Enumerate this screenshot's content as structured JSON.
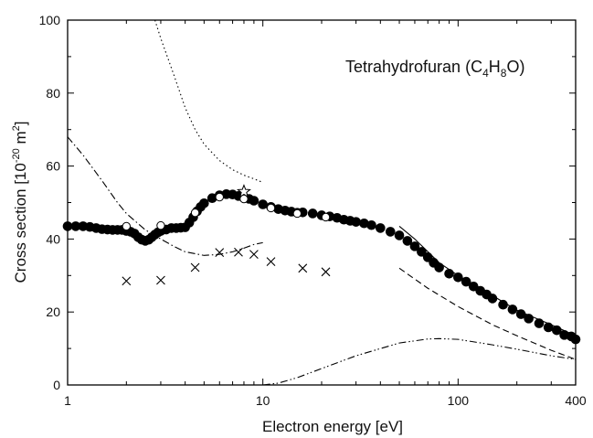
{
  "chart_data": {
    "type": "scatter",
    "title": "",
    "xlabel": "Electron energy [eV]",
    "ylabel": {
      "prefix": "Cross section [10",
      "exp": "-20",
      "unit": " m",
      "unit_exp": "2",
      "suffix": "]"
    },
    "x_scale": "log",
    "xlim": [
      1,
      400
    ],
    "ylim": [
      0,
      100
    ],
    "x_ticks": [
      {
        "value": 1,
        "label": "1"
      },
      {
        "value": 10,
        "label": "10"
      },
      {
        "value": 100,
        "label": "100"
      },
      {
        "value": 400,
        "label": "400"
      }
    ],
    "y_ticks": [
      {
        "value": 0,
        "label": "0"
      },
      {
        "value": 20,
        "label": "20"
      },
      {
        "value": 40,
        "label": "40"
      },
      {
        "value": 60,
        "label": "60"
      },
      {
        "value": 80,
        "label": "80"
      },
      {
        "value": 100,
        "label": "100"
      }
    ],
    "annotation": {
      "text": "Tetrahydrofuran (C",
      "sub1": "4",
      "mid": "H",
      "sub2": "8",
      "end": "O)"
    },
    "series": [
      {
        "marker": "filled-circle",
        "points": [
          [
            1.0,
            43.5
          ],
          [
            1.1,
            43.5
          ],
          [
            1.2,
            43.5
          ],
          [
            1.3,
            43.3
          ],
          [
            1.4,
            43.0
          ],
          [
            1.5,
            42.7
          ],
          [
            1.6,
            42.6
          ],
          [
            1.7,
            42.5
          ],
          [
            1.8,
            42.5
          ],
          [
            1.9,
            42.5
          ],
          [
            2.0,
            42.2
          ],
          [
            2.1,
            42.0
          ],
          [
            2.2,
            41.5
          ],
          [
            2.3,
            40.5
          ],
          [
            2.4,
            39.8
          ],
          [
            2.5,
            39.5
          ],
          [
            2.6,
            39.8
          ],
          [
            2.7,
            40.5
          ],
          [
            2.8,
            41.2
          ],
          [
            2.9,
            41.8
          ],
          [
            3.0,
            42.2
          ],
          [
            3.2,
            42.6
          ],
          [
            3.4,
            43.0
          ],
          [
            3.6,
            43.0
          ],
          [
            3.8,
            43.1
          ],
          [
            4.0,
            43.2
          ],
          [
            4.2,
            44.5
          ],
          [
            4.4,
            46.0
          ],
          [
            4.6,
            47.6
          ],
          [
            4.8,
            48.8
          ],
          [
            5.0,
            49.8
          ],
          [
            5.5,
            51.2
          ],
          [
            6.0,
            52.0
          ],
          [
            6.5,
            52.3
          ],
          [
            7.0,
            52.2
          ],
          [
            7.5,
            51.8
          ],
          [
            8.0,
            51.5
          ],
          [
            8.5,
            51.0
          ],
          [
            9.0,
            50.5
          ],
          [
            10.0,
            49.5
          ],
          [
            11.0,
            48.8
          ],
          [
            12.0,
            48.2
          ],
          [
            13.0,
            47.8
          ],
          [
            14.0,
            47.5
          ],
          [
            15.0,
            47.2
          ],
          [
            16.0,
            47.3
          ],
          [
            18.0,
            47.0
          ],
          [
            20.0,
            46.5
          ],
          [
            22.0,
            46.2
          ],
          [
            24.0,
            45.8
          ],
          [
            26.0,
            45.3
          ],
          [
            28.0,
            45.0
          ],
          [
            30.0,
            44.7
          ],
          [
            33.0,
            44.3
          ],
          [
            36.0,
            43.8
          ],
          [
            40.0,
            43.0
          ],
          [
            45.0,
            42.0
          ],
          [
            50.0,
            41.0
          ],
          [
            55.0,
            39.5
          ],
          [
            60.0,
            38.0
          ],
          [
            65.0,
            36.5
          ],
          [
            70.0,
            35.0
          ],
          [
            75.0,
            33.5
          ],
          [
            80.0,
            32.2
          ],
          [
            90.0,
            30.5
          ],
          [
            100.0,
            29.5
          ],
          [
            110.0,
            28.3
          ],
          [
            120.0,
            27.0
          ],
          [
            130.0,
            25.8
          ],
          [
            140.0,
            24.8
          ],
          [
            150.0,
            23.7
          ],
          [
            170.0,
            22.0
          ],
          [
            190.0,
            20.7
          ],
          [
            210.0,
            19.4
          ],
          [
            230.0,
            18.2
          ],
          [
            260.0,
            16.9
          ],
          [
            290.0,
            15.8
          ],
          [
            320.0,
            15.0
          ],
          [
            350.0,
            13.7
          ],
          [
            380.0,
            13.3
          ],
          [
            400.0,
            12.5
          ]
        ]
      },
      {
        "marker": "open-circle",
        "points": [
          [
            2.0,
            43.5
          ],
          [
            3.0,
            43.7
          ],
          [
            4.5,
            47.2
          ],
          [
            6.0,
            51.5
          ],
          [
            8.0,
            51.0
          ],
          [
            11.0,
            48.5
          ],
          [
            15.0,
            47.0
          ],
          [
            21.0,
            46.0
          ]
        ]
      },
      {
        "marker": "cross",
        "points": [
          [
            2.0,
            28.5
          ],
          [
            3.0,
            28.7
          ],
          [
            4.5,
            32.2
          ],
          [
            6.0,
            36.3
          ],
          [
            7.5,
            36.4
          ],
          [
            9.0,
            35.8
          ],
          [
            11.0,
            33.8
          ],
          [
            16.0,
            32.0
          ],
          [
            21.0,
            31.0
          ]
        ]
      },
      {
        "marker": "star",
        "points": [
          [
            8.0,
            53.0
          ]
        ]
      },
      {
        "line": "solid",
        "points": [
          [
            50.0,
            43.5
          ],
          [
            60.0,
            40.0
          ],
          [
            80.0,
            33.5
          ],
          [
            100.0,
            30.0
          ],
          [
            150.0,
            24.5
          ],
          [
            200.0,
            20.5
          ],
          [
            300.0,
            16.5
          ],
          [
            400.0,
            13.5
          ]
        ]
      },
      {
        "line": "dashed",
        "points": [
          [
            50.0,
            32.0
          ],
          [
            70.0,
            26.5
          ],
          [
            100.0,
            21.5
          ],
          [
            150.0,
            16.5
          ],
          [
            200.0,
            13.5
          ],
          [
            300.0,
            9.5
          ],
          [
            400.0,
            7.0
          ]
        ]
      },
      {
        "line": "dotted",
        "points": [
          [
            2.8,
            100.0
          ],
          [
            3.0,
            95.0
          ],
          [
            3.5,
            85.0
          ],
          [
            4.0,
            76.0
          ],
          [
            4.5,
            70.0
          ],
          [
            5.0,
            66.0
          ],
          [
            6.0,
            61.5
          ],
          [
            7.0,
            59.0
          ],
          [
            8.0,
            57.5
          ],
          [
            9.0,
            56.5
          ],
          [
            10.0,
            55.5
          ]
        ]
      },
      {
        "line": "dash-dot",
        "points": [
          [
            1.0,
            68.0
          ],
          [
            1.2,
            63.0
          ],
          [
            1.5,
            56.0
          ],
          [
            1.8,
            50.0
          ],
          [
            2.0,
            47.0
          ],
          [
            2.5,
            42.5
          ],
          [
            3.0,
            40.0
          ],
          [
            3.5,
            38.0
          ],
          [
            4.0,
            36.5
          ],
          [
            5.0,
            35.5
          ],
          [
            6.0,
            35.8
          ],
          [
            7.0,
            36.5
          ],
          [
            8.0,
            37.5
          ],
          [
            9.0,
            38.5
          ],
          [
            10.0,
            39.0
          ]
        ]
      },
      {
        "line": "dash-dot-dot",
        "points": [
          [
            10.0,
            0.0
          ],
          [
            12.0,
            0.5
          ],
          [
            15.0,
            2.0
          ],
          [
            20.0,
            4.5
          ],
          [
            30.0,
            8.0
          ],
          [
            50.0,
            11.5
          ],
          [
            70.0,
            12.6
          ],
          [
            80.0,
            12.7
          ],
          [
            100.0,
            12.5
          ],
          [
            150.0,
            11.0
          ],
          [
            200.0,
            9.8
          ],
          [
            300.0,
            8.0
          ],
          [
            400.0,
            7.0
          ]
        ]
      }
    ]
  }
}
